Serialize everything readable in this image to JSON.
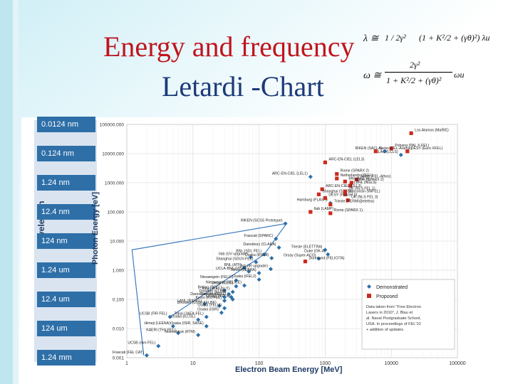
{
  "slide": {
    "title_line1": "Energy and frequency",
    "title_line2": "Letardi  -Chart"
  },
  "formulas": {
    "lambda_lhs": "λ ≅",
    "lambda_frac": "1 / 2γ²",
    "lambda_term": "(1 + K²/2 + (γθ)²) λu",
    "omega_lhs": "ω ≅",
    "omega_num": "2γ²",
    "omega_den": "1 + K²/2 + (γθ)²",
    "omega_rhs": "ωu"
  },
  "colors": {
    "demonstrated": "#2e6fa8",
    "proposed": "#cc2a1e",
    "wavelength_box": "#2e6fa8",
    "title_red": "#c0141e",
    "title_blue": "#1c3a78"
  },
  "chart_data": {
    "type": "scatter",
    "xlabel": "Electron Beam Energy [MeV]",
    "ylabel": "Photon Energy [eV]",
    "x_scale": "log",
    "y_scale": "log",
    "xlim": [
      1,
      100000
    ],
    "ylim": [
      0.001,
      100000
    ],
    "x_ticks": [
      "1",
      "10",
      "100",
      "1000",
      "10000",
      "100000"
    ],
    "y_ticks": [
      "100000.000",
      "10000.000",
      "1000.000",
      "100.000",
      "10.000",
      "1.000",
      "0.100",
      "0.010",
      "0.001"
    ],
    "grid": true,
    "wavelength_axis_title": "Wavelength",
    "wavelength_labels": [
      "0.0124 nm",
      "0.124 nm",
      "1.24 nm",
      "12.4 nm",
      "124 nm",
      "1.24 um",
      "12.4 um",
      "124 um",
      "1.24 mm"
    ],
    "legend": {
      "placement": "bottom-right",
      "entries": [
        "Demonstrated",
        "Proposed"
      ],
      "note": "Data taken from \"Free Electron Lasers in 2010\", J. Blau et al. Naval Postgraduate School, USA. In proceedings of FEL'10 + addition of updates"
    },
    "series": [
      {
        "name": "Demonstrated",
        "points": [
          {
            "label": "RIKEN (SACLA)",
            "x": 8000,
            "y": 12000
          },
          {
            "label": "SLAC (LCLS)",
            "x": 14000,
            "y": 9000
          },
          {
            "label": "ARC-EN-CIEL (LEL1)",
            "x": 600,
            "y": 1600
          },
          {
            "label": "Hamburg (FLASH)",
            "x": 1200,
            "y": 200
          },
          {
            "label": "RIKEN (SCSS Prototype)",
            "x": 250,
            "y": 40
          },
          {
            "label": "Frascati (SPARC)",
            "x": 180,
            "y": 12
          },
          {
            "label": "Daresbury (CLARA)",
            "x": 200,
            "y": 6
          },
          {
            "label": "Trieste (ELETTRA)",
            "x": 1000,
            "y": 5
          },
          {
            "label": "Duke (OK-4)",
            "x": 1100,
            "y": 3.5
          },
          {
            "label": "Orsay (Super-ACO)",
            "x": 800,
            "y": 2.5
          },
          {
            "label": "BNL (SDL FEL)",
            "x": 120,
            "y": 3.5
          },
          {
            "label": "Osaka (iFEL3)",
            "x": 155,
            "y": 2.6
          },
          {
            "label": "Ilab (UV upgrade)",
            "x": 75,
            "y": 2.8
          },
          {
            "label": "Shanghai (SDUV-FEL)",
            "x": 90,
            "y": 1.9
          },
          {
            "label": "BNL (ATF)",
            "x": 60,
            "y": 1.2
          },
          {
            "label": "UCLA-BNL (VISA)",
            "x": 70,
            "y": 0.9
          },
          {
            "label": "Nihon (LEBRA)",
            "x": 100,
            "y": 0.8
          },
          {
            "label": "Jlab (IR upgrade)",
            "x": 150,
            "y": 1.1
          },
          {
            "label": "Nieuwegein (FELIX)",
            "x": 45,
            "y": 0.45
          },
          {
            "label": "Osaka (iFEL2)",
            "x": 100,
            "y": 0.48
          },
          {
            "label": "Orsay (CLIO)",
            "x": 45,
            "y": 0.28
          },
          {
            "label": "Nieuwegein (FELICE)",
            "x": 60,
            "y": 0.3
          },
          {
            "label": "Beijing (BFEL)",
            "x": 30,
            "y": 0.2
          },
          {
            "label": "Tokyo (FEL-SUT)",
            "x": 40,
            "y": 0.18
          },
          {
            "label": "Darmstadt (FEL)",
            "x": 38,
            "y": 0.12
          },
          {
            "label": "Osaka (iFEL4)",
            "x": 40,
            "y": 0.1
          },
          {
            "label": "Dresden (ELBE)",
            "x": 35,
            "y": 0.15
          },
          {
            "label": "Daresbury (ALICE)",
            "x": 30,
            "y": 0.12
          },
          {
            "label": "Kyoto (KU-FEL)",
            "x": 30,
            "y": 0.09
          },
          {
            "label": "LANL (RAFEL)",
            "x": 15,
            "y": 0.07
          },
          {
            "label": "Dresden (U100-FELBE)",
            "x": 25,
            "y": 0.06
          },
          {
            "label": "Osaka (FELI4)",
            "x": 30,
            "y": 0.05
          },
          {
            "label": "Osaka (iSIR)",
            "x": 27,
            "y": 0.035
          },
          {
            "label": "Tokai (JAEA-FEL)",
            "x": 16,
            "y": 0.025
          },
          {
            "label": "UCSB (FIR FEL)",
            "x": 4.5,
            "y": 0.025
          },
          {
            "label": "Osaka (iLCSL)",
            "x": 12,
            "y": 0.02
          },
          {
            "label": "Himeji (LEENA)",
            "x": 5,
            "y": 0.012
          },
          {
            "label": "Osaka (ISIR, SASE)",
            "x": 16,
            "y": 0.012
          },
          {
            "label": "KAERI (THz FEL)",
            "x": 6,
            "y": 0.007
          },
          {
            "label": "Novosibirsk (RTM)",
            "x": 12,
            "y": 0.006
          },
          {
            "label": "UCSB (mm FEL)",
            "x": 3,
            "y": 0.0025
          },
          {
            "label": "Frascati (FEL CAT)",
            "x": 2,
            "y": 0.0012
          }
        ]
      },
      {
        "name": "Proposed",
        "points": [
          {
            "label": "Los Alamos (MaRIE)",
            "x": 20000,
            "y": 50000
          },
          {
            "label": "Pohang (PAL X-FEL)",
            "x": 10000,
            "y": 15000
          },
          {
            "label": "DESY (Euro XFEL)",
            "x": 17500,
            "y": 12000
          },
          {
            "label": "Swiss (FEL-Aramis)",
            "x": 5800,
            "y": 12000
          },
          {
            "label": "ARC-EN-CIEL (LEL3)",
            "x": 1000,
            "y": 5000
          },
          {
            "label": "Rome (SPARX 2)",
            "x": 1500,
            "y": 2000
          },
          {
            "label": "Netherlands (ZFEL)",
            "x": 1500,
            "y": 1400
          },
          {
            "label": "Swiss (FEL-Athos)",
            "x": 3000,
            "y": 1300
          },
          {
            "label": "BNL (NGLS)",
            "x": 2000,
            "y": 1100
          },
          {
            "label": "Rome (SPARX 2)",
            "x": 2500,
            "y": 1000
          },
          {
            "label": "LBNL (NGLS)",
            "x": 2400,
            "y": 800
          },
          {
            "label": "ARC-EN-CIEL (LEL3)",
            "x": 900,
            "y": 600
          },
          {
            "label": "Shanghai (SXFEL)",
            "x": 800,
            "y": 400
          },
          {
            "label": "UK (NLS FEL 1)",
            "x": 2000,
            "y": 500
          },
          {
            "label": "Wisconsin (WiFEL)",
            "x": 2000,
            "y": 400
          },
          {
            "label": "DESY (FLASH II)",
            "x": 1000,
            "y": 300
          },
          {
            "label": "UK (NLS FEL 3)",
            "x": 2200,
            "y": 250
          },
          {
            "label": "Trieste (FERMI@elettra)",
            "x": 1200,
            "y": 180
          },
          {
            "label": "Ilab (LAMP)",
            "x": 600,
            "y": 100
          },
          {
            "label": "Rome (SPARX 1)",
            "x": 1200,
            "y": 90
          },
          {
            "label": "Dortmund (FELICITA)",
            "x": 500,
            "y": 2
          }
        ]
      }
    ],
    "trend_line": {
      "points": [
        {
          "x": 1.8,
          "y": 0.0012
        },
        {
          "x": 1.2,
          "y": 5
        },
        {
          "x": 260,
          "y": 40
        },
        {
          "x": 120,
          "y": 3.5
        },
        {
          "x": 4.5,
          "y": 0.025
        }
      ]
    }
  }
}
